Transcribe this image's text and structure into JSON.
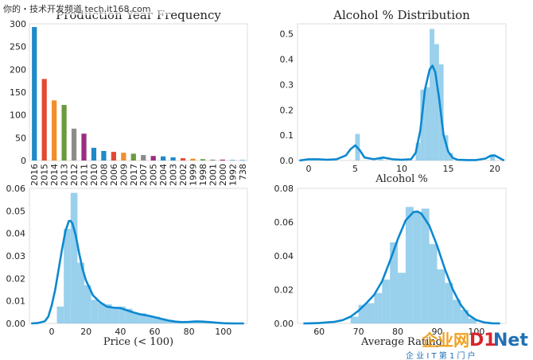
{
  "watermark": {
    "top_left": "你的・技术开发频道 tech.it168.com",
    "logo_left": "企业网",
    "logo_d1": "D1",
    "logo_net": "Net",
    "logo_sub": "企 业 I T 第 1 门 户"
  },
  "chart_data": [
    {
      "type": "bar",
      "title": "Production Year Frequency",
      "xlabel": "",
      "ylabel": "",
      "categories": [
        "2016",
        "2015",
        "2014",
        "2013",
        "2012",
        "2011",
        "2010",
        "2008",
        "2006",
        "2009",
        "2017",
        "2007",
        "2005",
        "2004",
        "2003",
        "2002",
        "1999",
        "1998",
        "2001",
        "2000",
        "1992",
        "738"
      ],
      "values": [
        293,
        179,
        132,
        122,
        70,
        59,
        28,
        21,
        19,
        17,
        15,
        12,
        10,
        9,
        7,
        5,
        4,
        3,
        2,
        2,
        1,
        1
      ],
      "colors": [
        "#1f8ac9",
        "#e24a33",
        "#f28e2b",
        "#6a9a3f",
        "#8c8c8c",
        "#9b2d7f",
        "#1f8ac9",
        "#1f8ac9",
        "#e24a33",
        "#f28e2b",
        "#6a9a3f",
        "#8c8c8c",
        "#9b2d7f",
        "#1f8ac9",
        "#1f8ac9",
        "#e24a33",
        "#f28e2b",
        "#6a9a3f",
        "#8c8c8c",
        "#9b2d7f",
        "#1f8ac9",
        "#1f8ac9"
      ],
      "ylim": [
        0,
        300
      ],
      "yticks": [
        0,
        50,
        100,
        150,
        200,
        250,
        300
      ],
      "grid": false
    },
    {
      "type": "histogram+kde",
      "title": "Alcohol % Distribution",
      "xlabel": "Alcohol %",
      "ylabel": "",
      "bins": [
        {
          "x0": 0.0,
          "x1": 0.5,
          "h": 0.005
        },
        {
          "x0": 5.0,
          "x1": 5.5,
          "h": 0.105
        },
        {
          "x0": 7.5,
          "x1": 8.0,
          "h": 0.008
        },
        {
          "x0": 11.5,
          "x1": 12.0,
          "h": 0.07
        },
        {
          "x0": 12.0,
          "x1": 12.5,
          "h": 0.28
        },
        {
          "x0": 12.5,
          "x1": 13.0,
          "h": 0.29
        },
        {
          "x0": 13.0,
          "x1": 13.5,
          "h": 0.52
        },
        {
          "x0": 13.5,
          "x1": 14.0,
          "h": 0.46
        },
        {
          "x0": 14.0,
          "x1": 14.5,
          "h": 0.38
        },
        {
          "x0": 14.5,
          "x1": 15.0,
          "h": 0.1
        },
        {
          "x0": 15.0,
          "x1": 15.5,
          "h": 0.03
        },
        {
          "x0": 19.5,
          "x1": 20.0,
          "h": 0.025
        }
      ],
      "kde": {
        "x": [
          -1,
          0,
          1,
          2,
          3,
          4,
          4.5,
          5,
          5.5,
          6,
          7,
          8,
          9,
          10,
          11,
          11.5,
          12,
          12.5,
          13,
          13.3,
          13.6,
          14,
          14.5,
          15,
          15.5,
          16,
          17,
          18,
          19,
          19.5,
          20,
          20.5,
          21
        ],
        "y": [
          0,
          0.005,
          0.005,
          0.003,
          0.005,
          0.02,
          0.045,
          0.06,
          0.04,
          0.012,
          0.005,
          0.012,
          0.005,
          0.003,
          0.005,
          0.03,
          0.12,
          0.28,
          0.36,
          0.375,
          0.35,
          0.25,
          0.1,
          0.035,
          0.01,
          0.003,
          0.002,
          0.002,
          0.008,
          0.018,
          0.02,
          0.01,
          0.0
        ]
      },
      "xlim": [
        -1.2,
        21.2
      ],
      "ylim": [
        0,
        0.54
      ],
      "xticks": [
        0,
        5,
        10,
        15,
        20
      ],
      "yticks": [
        0.0,
        0.1,
        0.2,
        0.3,
        0.4,
        0.5
      ],
      "grid": false
    },
    {
      "type": "histogram+kde",
      "title": "",
      "xlabel": "Price (< 100)",
      "ylabel": "",
      "bins": [
        {
          "x0": 3,
          "x1": 7,
          "h": 0.0075
        },
        {
          "x0": 7,
          "x1": 11,
          "h": 0.042
        },
        {
          "x0": 11,
          "x1": 15,
          "h": 0.058
        },
        {
          "x0": 15,
          "x1": 19,
          "h": 0.027
        },
        {
          "x0": 19,
          "x1": 23,
          "h": 0.017
        },
        {
          "x0": 23,
          "x1": 27,
          "h": 0.0105
        },
        {
          "x0": 27,
          "x1": 31,
          "h": 0.009
        },
        {
          "x0": 31,
          "x1": 35,
          "h": 0.0085
        },
        {
          "x0": 35,
          "x1": 39,
          "h": 0.0065
        },
        {
          "x0": 39,
          "x1": 43,
          "h": 0.0075
        },
        {
          "x0": 43,
          "x1": 47,
          "h": 0.0065
        },
        {
          "x0": 47,
          "x1": 51,
          "h": 0.0045
        },
        {
          "x0": 51,
          "x1": 55,
          "h": 0.0045
        },
        {
          "x0": 55,
          "x1": 59,
          "h": 0.0035
        },
        {
          "x0": 59,
          "x1": 63,
          "h": 0.003
        },
        {
          "x0": 63,
          "x1": 67,
          "h": 0.002
        },
        {
          "x0": 67,
          "x1": 71,
          "h": 0.0015
        },
        {
          "x0": 71,
          "x1": 75,
          "h": 0.001
        },
        {
          "x0": 75,
          "x1": 79,
          "h": 0.001
        },
        {
          "x0": 79,
          "x1": 83,
          "h": 0.0005
        },
        {
          "x0": 83,
          "x1": 87,
          "h": 0.0005
        },
        {
          "x0": 87,
          "x1": 91,
          "h": 0.0005
        },
        {
          "x0": 91,
          "x1": 95,
          "h": 0.0005
        },
        {
          "x0": 95,
          "x1": 99,
          "h": 0.0003
        }
      ],
      "kde": {
        "x": [
          -12,
          -8,
          -4,
          -2,
          0,
          2,
          4,
          6,
          8,
          10,
          11,
          12,
          14,
          16,
          18,
          20,
          24,
          28,
          32,
          36,
          40,
          44,
          48,
          52,
          56,
          60,
          64,
          68,
          72,
          76,
          80,
          84,
          88,
          92,
          96,
          100,
          104,
          108,
          112
        ],
        "y": [
          0,
          0.0002,
          0.001,
          0.003,
          0.008,
          0.015,
          0.024,
          0.033,
          0.041,
          0.0455,
          0.0455,
          0.0445,
          0.039,
          0.031,
          0.024,
          0.019,
          0.0125,
          0.0095,
          0.0075,
          0.007,
          0.0068,
          0.0058,
          0.0048,
          0.004,
          0.0035,
          0.0028,
          0.002,
          0.0013,
          0.0008,
          0.0006,
          0.0007,
          0.0009,
          0.0008,
          0.0006,
          0.0003,
          0.0001,
          5e-05,
          0,
          0
        ]
      },
      "xlim": [
        -13,
        114
      ],
      "ylim": [
        0,
        0.06
      ],
      "xticks": [
        0,
        20,
        40,
        60,
        80,
        100
      ],
      "yticks": [
        0.0,
        0.01,
        0.02,
        0.03,
        0.04,
        0.05,
        0.06
      ],
      "grid": false
    },
    {
      "type": "histogram+kde",
      "title": "",
      "xlabel": "Average Rating",
      "ylabel": "",
      "bins": [
        {
          "x0": 68,
          "x1": 70,
          "h": 0.004
        },
        {
          "x0": 70,
          "x1": 72,
          "h": 0.011
        },
        {
          "x0": 72,
          "x1": 74,
          "h": 0.012
        },
        {
          "x0": 74,
          "x1": 76,
          "h": 0.018
        },
        {
          "x0": 76,
          "x1": 78,
          "h": 0.026
        },
        {
          "x0": 78,
          "x1": 80,
          "h": 0.048
        },
        {
          "x0": 80,
          "x1": 82,
          "h": 0.03
        },
        {
          "x0": 82,
          "x1": 84,
          "h": 0.069
        },
        {
          "x0": 84,
          "x1": 86,
          "h": 0.066
        },
        {
          "x0": 86,
          "x1": 88,
          "h": 0.068
        },
        {
          "x0": 88,
          "x1": 90,
          "h": 0.047
        },
        {
          "x0": 90,
          "x1": 92,
          "h": 0.032
        },
        {
          "x0": 92,
          "x1": 94,
          "h": 0.024
        },
        {
          "x0": 94,
          "x1": 96,
          "h": 0.014
        },
        {
          "x0": 96,
          "x1": 98,
          "h": 0.008
        },
        {
          "x0": 98,
          "x1": 100,
          "h": 0.003
        }
      ],
      "kde": {
        "x": [
          56,
          58,
          60,
          62,
          64,
          66,
          68,
          70,
          72,
          74,
          76,
          78,
          80,
          82,
          84,
          85,
          86,
          88,
          90,
          92,
          94,
          96,
          98,
          100,
          102,
          104,
          106
        ],
        "y": [
          0,
          0.0001,
          0.0003,
          0.0006,
          0.001,
          0.002,
          0.004,
          0.0075,
          0.012,
          0.017,
          0.025,
          0.037,
          0.05,
          0.061,
          0.066,
          0.0663,
          0.065,
          0.058,
          0.046,
          0.032,
          0.02,
          0.011,
          0.005,
          0.002,
          0.0006,
          0.0001,
          0
        ]
      },
      "xlim": [
        54.5,
        107.5
      ],
      "ylim": [
        0,
        0.08
      ],
      "xticks": [
        60,
        70,
        80,
        90,
        100
      ],
      "yticks": [
        0.0,
        0.02,
        0.04,
        0.06,
        0.08
      ],
      "grid": false
    }
  ]
}
